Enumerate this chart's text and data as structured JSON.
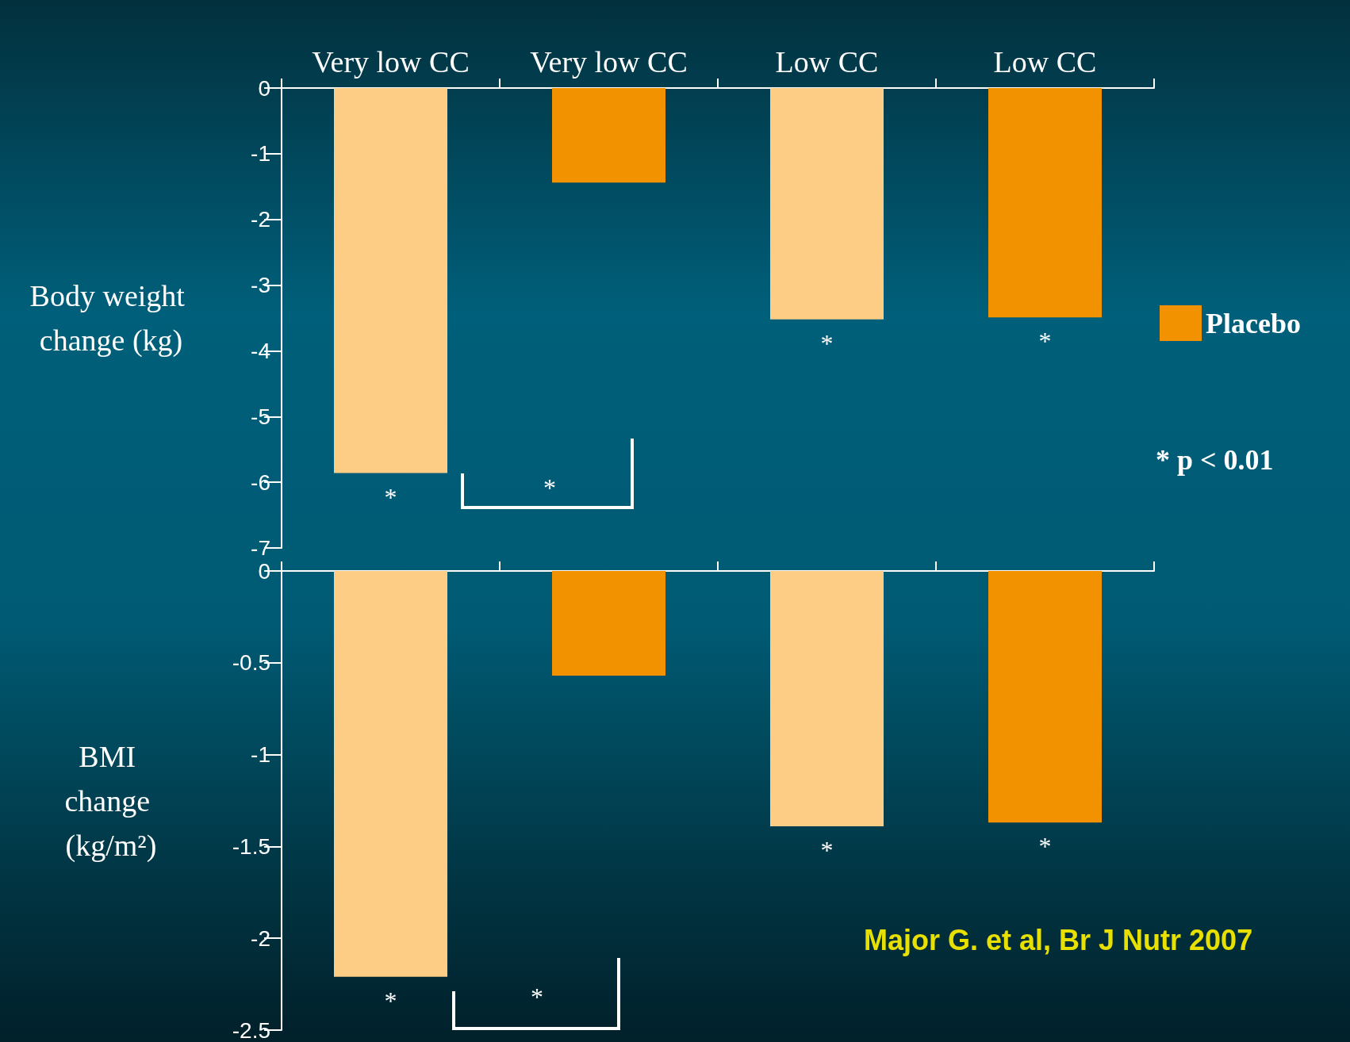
{
  "chart_data": [
    {
      "type": "bar",
      "ylabel": "Body weight change (kg)",
      "categories": [
        "Very low CC",
        "Very low CC",
        "Low CC",
        "Low CC"
      ],
      "series": [
        {
          "name": "Placebo",
          "color": "#f39200",
          "values": [
            null,
            -1.44,
            null,
            -3.49
          ]
        },
        {
          "color": "#fdcc85",
          "values": [
            -5.86,
            null,
            -3.52,
            null
          ]
        }
      ],
      "ylim": [
        -7,
        0
      ],
      "yticks": [
        -7,
        -6,
        -5,
        -4,
        -3,
        -2,
        -1,
        0
      ],
      "legend": "right",
      "grid": false,
      "annotations": [
        "*",
        "*",
        "*",
        "*",
        "* p < 0.01"
      ]
    },
    {
      "type": "bar",
      "ylabel": "BMI change (kg/m²)",
      "categories": [
        null,
        null,
        null,
        null
      ],
      "series": [
        {
          "color": "#f39200",
          "values": [
            null,
            -0.57,
            null,
            -1.37
          ]
        },
        {
          "color": "#fdcc85",
          "values": [
            -2.21,
            null,
            -1.39,
            null
          ]
        }
      ],
      "ylim": [
        -2.5,
        0
      ],
      "yticks": [
        -2.5,
        -2,
        -1.5,
        -1,
        -0.5,
        0
      ],
      "tick_labels": "y",
      "legend": false,
      "grid": false,
      "annotations": [
        "*",
        "*",
        "*",
        "*",
        "Major G. et al, Br J Nutr 2007"
      ]
    }
  ]
}
